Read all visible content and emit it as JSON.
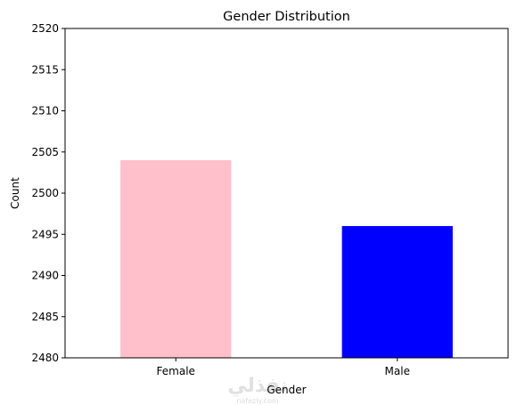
{
  "chart_data": {
    "type": "bar",
    "title": "Gender Distribution",
    "xlabel": "Gender",
    "ylabel": "Count",
    "categories": [
      "Female",
      "Male"
    ],
    "values": [
      2504,
      2496
    ],
    "colors": [
      "#FFC0CB",
      "#0000FF"
    ],
    "ylim": [
      2480,
      2520
    ],
    "yticks": [
      2480,
      2485,
      2490,
      2495,
      2500,
      2505,
      2510,
      2515,
      2520
    ],
    "grid": false,
    "legend": "none"
  },
  "watermark": {
    "script_text": "نفذلي",
    "url_text": "nafezly.com"
  }
}
